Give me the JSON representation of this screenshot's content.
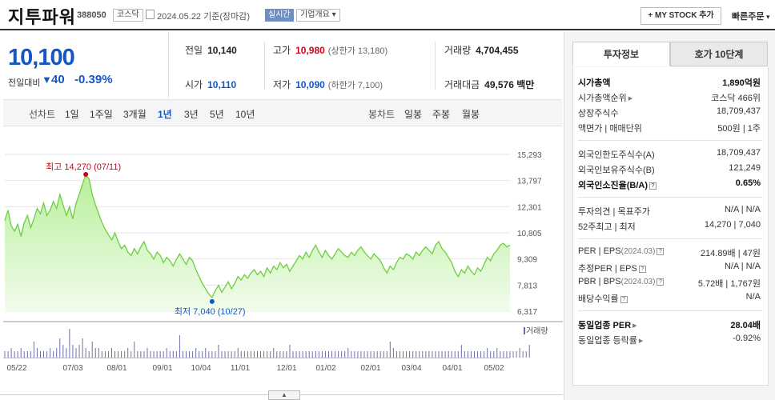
{
  "header": {
    "name": "지투파워",
    "code": "388050",
    "market": "코스닥",
    "date": "2024.05.22 기준(장마감)",
    "realtime": "실시간",
    "company_overview": "기업개요",
    "mystock": "+ MY STOCK 추가",
    "quick_order": "빠른주문"
  },
  "quote": {
    "price": "10,100",
    "change_label": "전일대비",
    "change_arrow": "▼",
    "change": "40",
    "change_pct": "-0.39%",
    "prev_label": "전일",
    "prev": "10,140",
    "high_label": "고가",
    "high": "10,980",
    "upper_limit": "(상한가 13,180)",
    "volume_label": "거래량",
    "volume": "4,704,455",
    "open_label": "시가",
    "open": "10,110",
    "low_label": "저가",
    "low": "10,090",
    "lower_limit": "(하한가 7,100)",
    "amount_label": "거래대금",
    "amount": "49,576 백만"
  },
  "periods": {
    "line_chart": "선차트",
    "items": [
      "1일",
      "1주일",
      "3개월",
      "1년",
      "3년",
      "5년",
      "10년"
    ],
    "selected": "1년",
    "candle_chart": "봉차트",
    "candle_items": [
      "일봉",
      "주봉",
      "월봉"
    ]
  },
  "chart_data": {
    "type": "area",
    "x_ticks": [
      "05/22",
      "07/03",
      "08/01",
      "09/01",
      "10/04",
      "11/01",
      "12/01",
      "01/02",
      "02/01",
      "03/04",
      "04/01",
      "05/02"
    ],
    "y_ticks": [
      15293,
      13797,
      12301,
      10805,
      9309,
      7813,
      6317
    ],
    "ylim": [
      6317,
      15293
    ],
    "max_annotation": "최고 14,270 (07/11)",
    "min_annotation": "최저 7,040 (10/27)",
    "volume_label": "거래량",
    "series": [
      {
        "values": [
          11500,
          12100,
          11200,
          10900,
          11300,
          10600,
          11400,
          11800,
          11100,
          11600,
          12200,
          11900,
          12500,
          11800,
          12100,
          12600,
          12200,
          13000,
          12400,
          11800,
          12300,
          11600,
          12500,
          13000,
          13600,
          14100,
          13900,
          13000,
          12400,
          11900,
          11400,
          11000,
          10700,
          10400,
          10800,
          10300,
          9900,
          10100,
          9700,
          9500,
          9900,
          9600,
          10000,
          10300,
          9800,
          9600,
          9300,
          9700,
          9500,
          9100,
          9400,
          9200,
          8900,
          9300,
          9600,
          9300,
          9000,
          9400,
          9200,
          8700,
          8300,
          7900,
          7600,
          7300,
          7100,
          7500,
          7800,
          7400,
          7700,
          8000,
          7600,
          7900,
          8300,
          8100,
          8400,
          8200,
          8500,
          8700,
          8400,
          8600,
          8300,
          8800,
          8500,
          8900,
          8700,
          9100,
          8800,
          9000,
          8600,
          8900,
          9200,
          9500,
          9300,
          9700,
          9400,
          9800,
          10100,
          9700,
          9400,
          9800,
          9500,
          9300,
          9600,
          9900,
          9700,
          9500,
          9400,
          9700,
          9500,
          9800,
          10000,
          9700,
          9500,
          9300,
          9600,
          9400,
          9200,
          8800,
          8500,
          8900,
          8700,
          9100,
          9400,
          9300,
          9600,
          9500,
          9300,
          9700,
          9500,
          9800,
          10000,
          9800,
          9600,
          10100,
          10300,
          9900,
          9700,
          9400,
          9100,
          8600,
          8300,
          8700,
          8500,
          8900,
          8600,
          8400,
          8800,
          8600,
          9000,
          9400,
          9200,
          9600,
          9800,
          10100,
          10200,
          10000,
          10100
        ]
      }
    ],
    "volume": [
      2,
      2,
      3,
      2,
      2,
      3,
      2,
      2,
      2,
      5,
      3,
      2,
      2,
      2,
      3,
      2,
      3,
      6,
      4,
      3,
      9,
      4,
      3,
      4,
      6,
      3,
      2,
      5,
      3,
      3,
      2,
      2,
      2,
      3,
      2,
      2,
      2,
      2,
      3,
      2,
      5,
      2,
      2,
      2,
      3,
      2,
      2,
      2,
      2,
      2,
      3,
      2,
      2,
      2,
      7,
      2,
      2,
      2,
      2,
      3,
      2,
      2,
      3,
      2,
      2,
      2,
      4,
      2,
      2,
      2,
      2,
      2,
      3,
      2,
      2,
      2,
      2,
      2,
      2,
      2,
      2,
      2,
      2,
      3,
      2,
      2,
      2,
      2,
      4,
      2,
      2,
      2,
      2,
      2,
      2,
      2,
      2,
      2,
      2,
      2,
      2,
      2,
      2,
      2,
      2,
      2,
      3,
      2,
      2,
      2,
      2,
      2,
      2,
      2,
      2,
      2,
      2,
      2,
      2,
      5,
      3,
      2,
      2,
      2,
      2,
      2,
      2,
      2,
      2,
      2,
      2,
      2,
      2,
      2,
      2,
      2,
      2,
      2,
      2,
      2,
      2,
      4,
      2,
      2,
      2,
      2,
      2,
      2,
      2,
      3,
      2,
      2,
      3,
      2,
      2,
      2,
      2,
      2,
      2,
      3,
      2,
      2,
      4
    ]
  },
  "panel": {
    "tab_invest": "투자정보",
    "tab_orderbook": "호가 10단계",
    "market_cap_label": "시가총액",
    "market_cap": "1,890억원",
    "market_cap_rank_label": "시가총액순위",
    "market_cap_rank": "코스닥 466위",
    "shares_label": "상장주식수",
    "shares": "18,709,437",
    "par_label": "액면가 | 매매단위",
    "par": "500원 | 1주",
    "foreign_limit_label": "외국인한도주식수(A)",
    "foreign_limit": "18,709,437",
    "foreign_hold_label": "외국인보유주식수(B)",
    "foreign_hold": "121,249",
    "foreign_ratio_label": "외국인소진율(B/A)",
    "foreign_ratio": "0.65%",
    "opinion_label": "투자의견 | 목표주가",
    "opinion": "N/A | N/A",
    "week52_label": "52주최고 | 최저",
    "week52": "14,270 | 7,040",
    "per_label": "PER | EPS",
    "per_period": "(2024.03)",
    "per": "214.89배 | 47원",
    "est_per_label": "추정PER | EPS",
    "est_per": "N/A | N/A",
    "pbr_label": "PBR | BPS",
    "pbr_period": "(2024.03)",
    "pbr": "5.72배 | 1,767원",
    "dividend_label": "배당수익률",
    "dividend": "N/A",
    "sector_per_label": "동일업종 PER",
    "sector_per": "28.04배",
    "sector_change_label": "동일업종 등락률",
    "sector_change": "-0.92%"
  }
}
